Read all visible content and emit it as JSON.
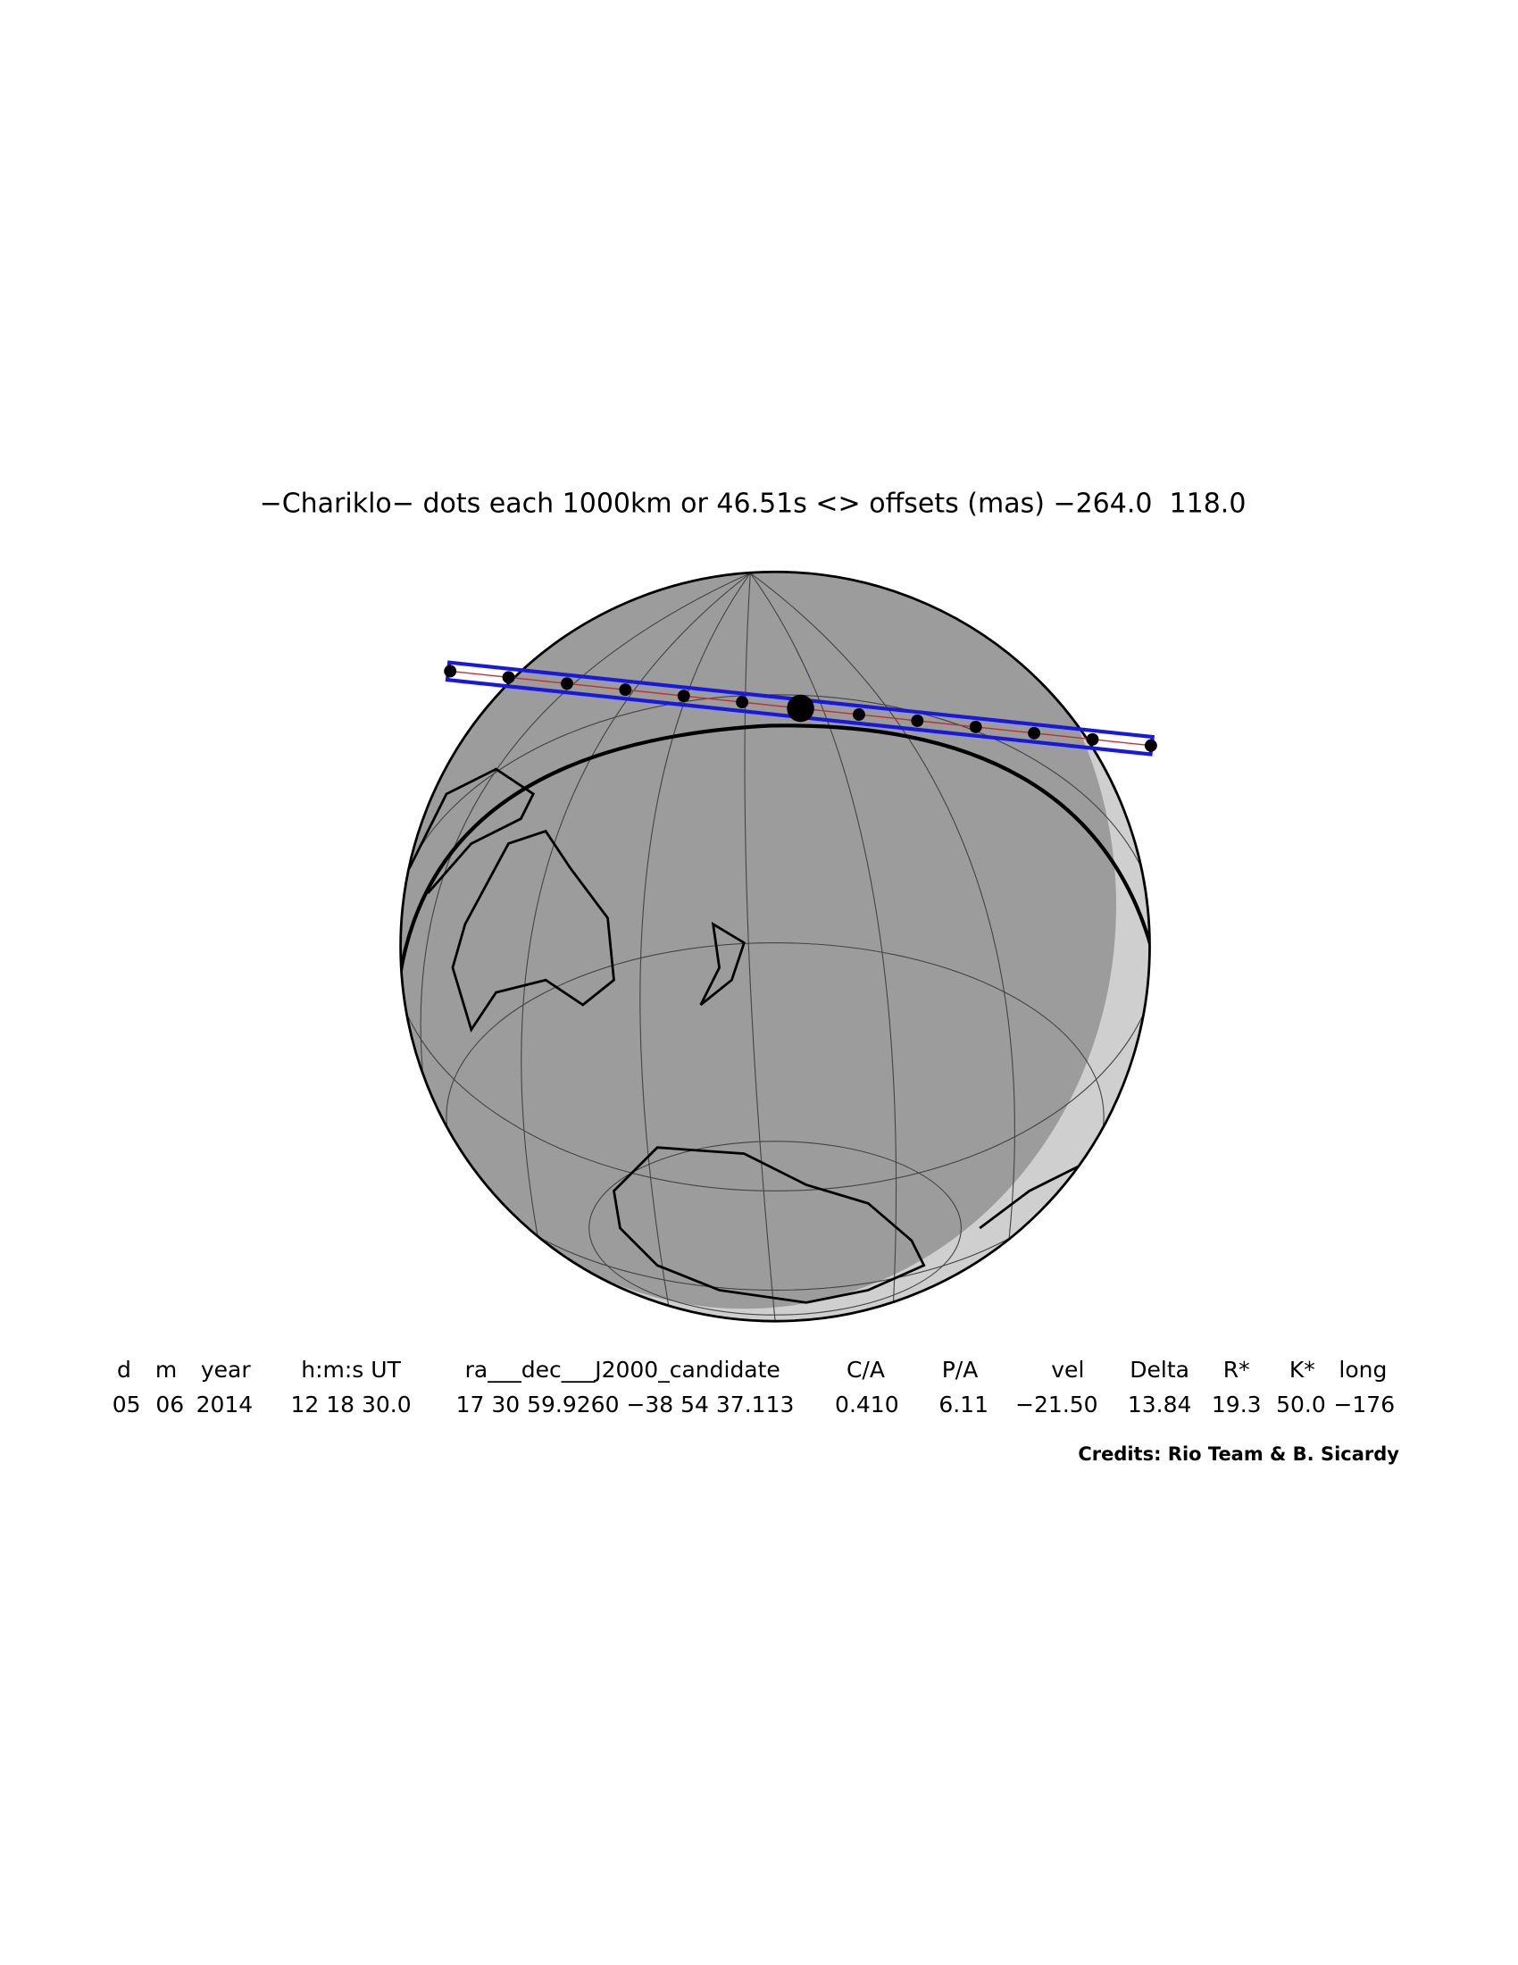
{
  "header": {
    "title": "−Chariklo− dots each 1000km or 46.51s <> offsets (mas) −264.0  118.0"
  },
  "table": {
    "header": [
      "d",
      "m",
      "year",
      "h:m:s UT",
      "ra___dec___J2000_candidate",
      "C/A",
      "P/A",
      "vel",
      "Delta",
      "R*",
      "K*",
      "long"
    ],
    "rows": [
      [
        "05",
        "06",
        "2014",
        "12 18 30.0",
        "17 30 59.9260 −38 54 37.113",
        "0.410",
        "6.11",
        "−21.50",
        "13.84",
        "19.3",
        "50.0",
        "−176"
      ]
    ]
  },
  "credits": "Credits: Rio Team & B. Sicardy"
}
